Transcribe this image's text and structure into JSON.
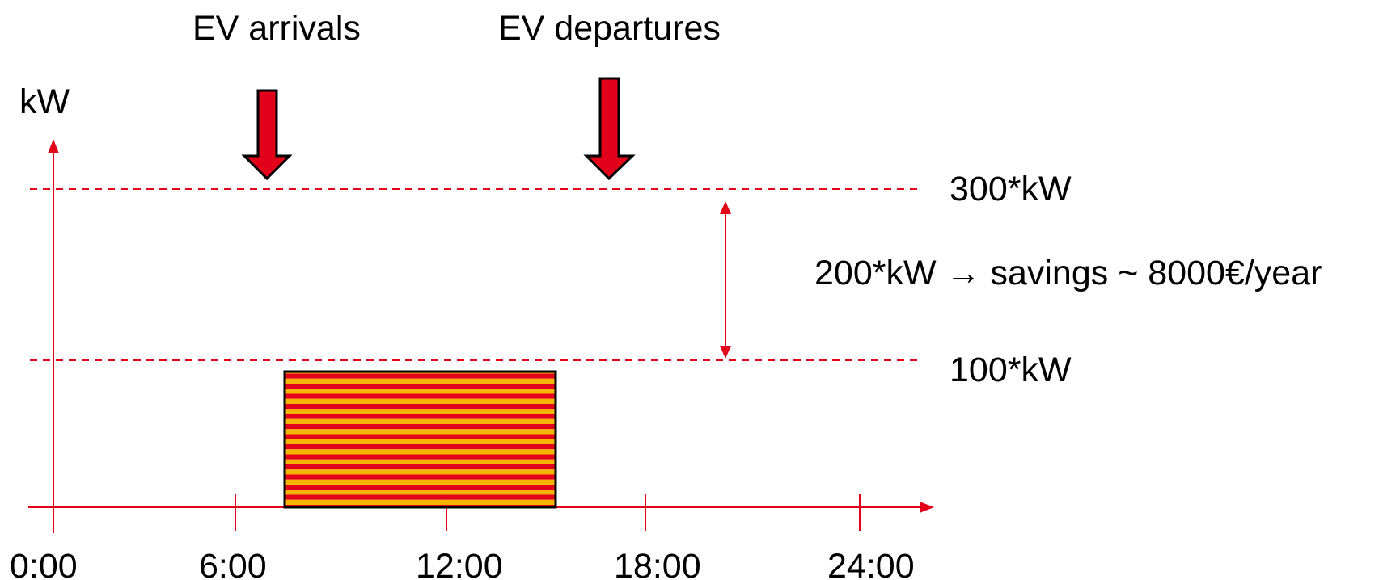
{
  "y_axis_label": "kW",
  "x_ticks": [
    "0:00",
    "6:00",
    "12:00",
    "18:00",
    "24:00"
  ],
  "arrows": {
    "arrivals_label": "EV arrivals",
    "departures_label": "EV departures"
  },
  "levels": {
    "upper_label": "300*kW",
    "lower_label": "100*kW"
  },
  "savings_text": "200*kW → savings ~  8000€/year",
  "charging_block": {
    "start": "7:30",
    "end": "15:00",
    "stripe_colors": [
      "#e2001a",
      "#f5b400"
    ],
    "border_color": "#000000"
  },
  "colors": {
    "axis": "#e2001a",
    "dashed_lines": "#e2001a",
    "arrow_fill": "#e2001a",
    "arrow_outline": "#000000"
  }
}
